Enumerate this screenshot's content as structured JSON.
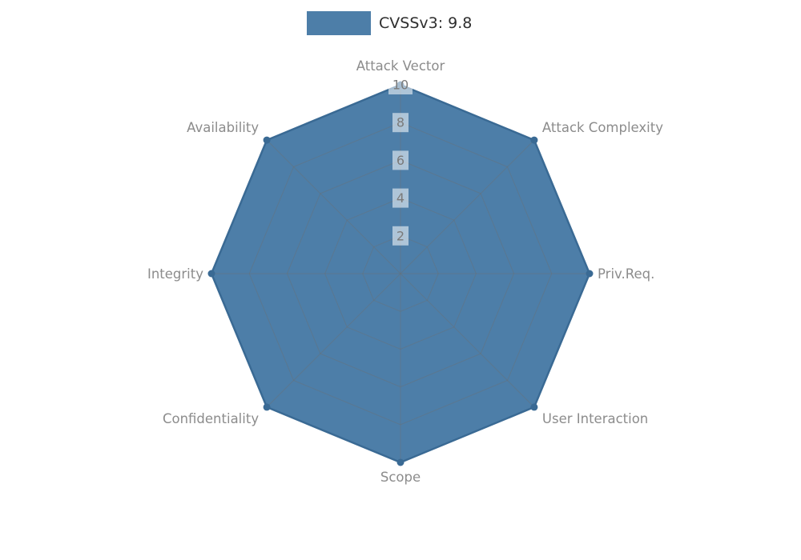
{
  "legend": {
    "label": "CVSSv3: 9.8"
  },
  "chart_data": {
    "type": "radar",
    "title": "CVSSv3: 9.8",
    "categories": [
      "Attack Vector",
      "Attack Complexity",
      "Priv.Req.",
      "User Interaction",
      "Scope",
      "Confidentiality",
      "Integrity",
      "Availability"
    ],
    "series": [
      {
        "name": "CVSSv3: 9.8",
        "values": [
          10,
          10,
          10,
          10,
          10,
          10,
          10,
          10
        ]
      }
    ],
    "ticks": [
      2,
      4,
      6,
      8,
      10
    ],
    "rmin": 0,
    "rmax": 10,
    "grid": true,
    "legend_position": "top-center",
    "fill_color": "#4d7ea8",
    "edge_color": "#3a6a94",
    "grid_color": "#6e6e6e",
    "label_color": "#8c8c8c",
    "tick_color": "#7a7a7a",
    "tick_bg_color": "#ffffff"
  }
}
